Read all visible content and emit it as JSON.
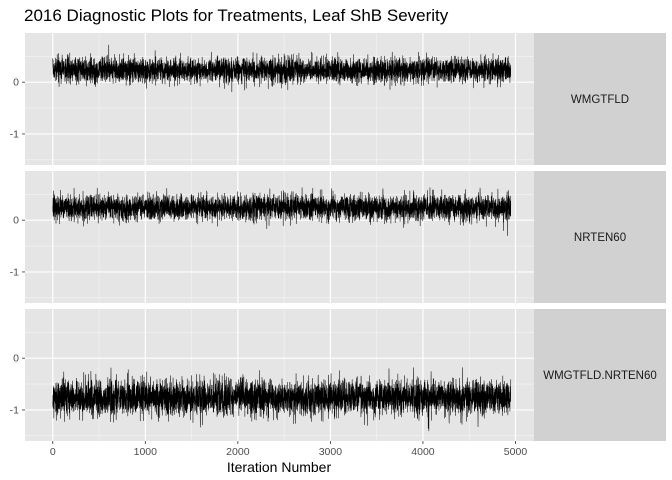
{
  "colors": {
    "panel_bg": "#e5e5e5",
    "strip_bg": "#d1d1d1",
    "grid_major": "#ffffff",
    "trace": "#000000"
  },
  "chart_data": {
    "type": "line",
    "title": "2016 Diagnostic Plots for Treatments, Leaf ShB Severity",
    "xlabel": "Iteration Number",
    "ylabel": "",
    "xlim": [
      -300,
      5200
    ],
    "ylim": [
      -1.6,
      0.95
    ],
    "x_ticks": [
      0,
      1000,
      2000,
      3000,
      4000,
      5000
    ],
    "x_tick_labels": [
      "0",
      "1000",
      "2000",
      "3000",
      "4000",
      "5000"
    ],
    "y_ticks": [
      0,
      -1
    ],
    "y_tick_labels": [
      "0",
      "-1"
    ],
    "n_iterations": 4950,
    "grid": true,
    "facet": "rows",
    "series": [
      {
        "name": "WMGTFLD",
        "mean": 0.23,
        "sd": 0.12,
        "min": -0.37,
        "max": 0.75
      },
      {
        "name": "NRTEN60",
        "mean": 0.24,
        "sd": 0.12,
        "min": -0.42,
        "max": 0.87
      },
      {
        "name": "WMGTFLD.NRTEN60",
        "mean": -0.76,
        "sd": 0.17,
        "min": -1.58,
        "max": 0.23
      }
    ]
  }
}
